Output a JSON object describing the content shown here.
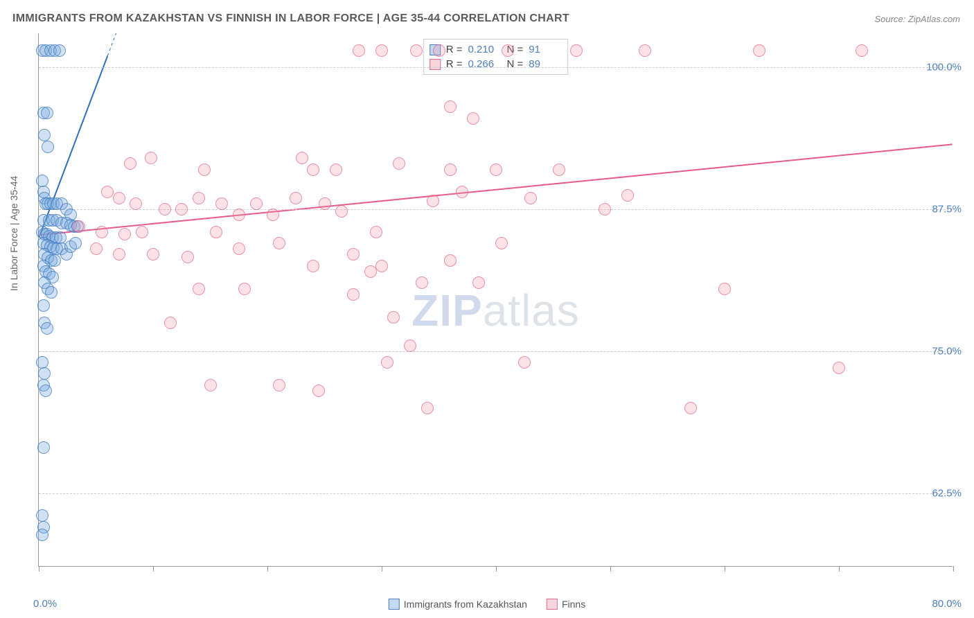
{
  "title": "IMMIGRANTS FROM KAZAKHSTAN VS FINNISH IN LABOR FORCE | AGE 35-44 CORRELATION CHART",
  "source": "Source: ZipAtlas.com",
  "y_axis_label": "In Labor Force | Age 35-44",
  "watermark": {
    "bold": "ZIP",
    "rest": "atlas"
  },
  "chart": {
    "type": "scatter",
    "xlim": [
      0,
      80
    ],
    "ylim": [
      56,
      103
    ],
    "x_ticks_major_labels": {
      "0": "0.0%",
      "80": "80.0%"
    },
    "x_ticks": [
      0,
      10,
      20,
      30,
      40,
      50,
      60,
      70,
      80
    ],
    "y_gridlines": [
      62.5,
      75.0,
      87.5,
      100.0
    ],
    "y_tick_labels": {
      "62.5": "62.5%",
      "75.0": "75.0%",
      "87.5": "87.5%",
      "100.0": "100.0%"
    },
    "grid_color": "#cccccc",
    "axis_color": "#999999",
    "label_color": "#4d7fc2",
    "background": "#ffffff",
    "marker_radius": 9,
    "series": [
      {
        "name": "Immigrants from Kazakhstan",
        "color_fill": "rgba(120,170,220,0.35)",
        "color_stroke": "#4d7fc2",
        "R": "0.210",
        "N": "91",
        "regression": {
          "x1": 0,
          "y1": 85,
          "x2": 6,
          "y2": 101,
          "dash_extend": true,
          "stroke": "#2f6fc0",
          "width": 2
        },
        "points": [
          [
            0.3,
            101.5
          ],
          [
            0.6,
            101.5
          ],
          [
            1.0,
            101.5
          ],
          [
            1.4,
            101.5
          ],
          [
            1.8,
            101.5
          ],
          [
            0.4,
            96
          ],
          [
            0.7,
            96
          ],
          [
            0.5,
            94
          ],
          [
            0.8,
            93
          ],
          [
            0.3,
            90
          ],
          [
            0.4,
            89
          ],
          [
            0.5,
            88.5
          ],
          [
            0.6,
            88
          ],
          [
            0.8,
            88
          ],
          [
            1.0,
            88
          ],
          [
            1.3,
            88
          ],
          [
            1.6,
            88
          ],
          [
            2.0,
            88
          ],
          [
            2.4,
            87.5
          ],
          [
            2.8,
            87
          ],
          [
            0.4,
            86.5
          ],
          [
            0.9,
            86.5
          ],
          [
            1.2,
            86.5
          ],
          [
            1.6,
            86.5
          ],
          [
            2.0,
            86.3
          ],
          [
            2.4,
            86.3
          ],
          [
            2.8,
            86.1
          ],
          [
            3.1,
            86.0
          ],
          [
            3.4,
            86.0
          ],
          [
            0.3,
            85.5
          ],
          [
            0.5,
            85.3
          ],
          [
            0.7,
            85.3
          ],
          [
            0.9,
            85.1
          ],
          [
            1.2,
            85.0
          ],
          [
            1.5,
            85.0
          ],
          [
            1.9,
            85.0
          ],
          [
            0.4,
            84.5
          ],
          [
            0.7,
            84.3
          ],
          [
            1.0,
            84.2
          ],
          [
            1.3,
            84.1
          ],
          [
            1.6,
            84.0
          ],
          [
            0.5,
            83.5
          ],
          [
            0.8,
            83.2
          ],
          [
            1.1,
            83.0
          ],
          [
            1.4,
            83.0
          ],
          [
            0.4,
            82.5
          ],
          [
            0.6,
            82.0
          ],
          [
            0.9,
            81.8
          ],
          [
            1.2,
            81.5
          ],
          [
            0.5,
            81.0
          ],
          [
            0.8,
            80.5
          ],
          [
            1.1,
            80.2
          ],
          [
            2.0,
            84.0
          ],
          [
            2.4,
            83.5
          ],
          [
            2.8,
            84.2
          ],
          [
            3.2,
            84.5
          ],
          [
            0.4,
            79.0
          ],
          [
            0.5,
            77.5
          ],
          [
            0.7,
            77.0
          ],
          [
            0.3,
            74.0
          ],
          [
            0.5,
            73.0
          ],
          [
            0.4,
            72.0
          ],
          [
            0.6,
            71.5
          ],
          [
            0.4,
            66.5
          ],
          [
            0.3,
            60.5
          ],
          [
            0.4,
            59.5
          ],
          [
            0.3,
            58.8
          ]
        ]
      },
      {
        "name": "Finns",
        "color_fill": "rgba(240,150,170,0.28)",
        "color_stroke": "#e06b8c",
        "R": "0.266",
        "N": "89",
        "regression": {
          "x1": 0,
          "y1": 85.2,
          "x2": 80,
          "y2": 93.2,
          "dash_extend": false,
          "stroke": "#e85a8a",
          "width": 2
        },
        "points": [
          [
            28,
            101.5
          ],
          [
            30,
            101.5
          ],
          [
            33,
            101.5
          ],
          [
            35,
            101.5
          ],
          [
            41,
            101.5
          ],
          [
            47,
            101.5
          ],
          [
            53,
            101.5
          ],
          [
            63,
            101.5
          ],
          [
            72,
            101.5
          ],
          [
            8,
            91.5
          ],
          [
            9.8,
            92
          ],
          [
            14.5,
            91
          ],
          [
            23,
            92
          ],
          [
            24,
            91
          ],
          [
            26,
            91
          ],
          [
            31.5,
            91.5
          ],
          [
            36,
            91
          ],
          [
            40,
            91
          ],
          [
            45.5,
            91
          ],
          [
            6,
            89
          ],
          [
            7,
            88.5
          ],
          [
            8.5,
            88
          ],
          [
            11,
            87.5
          ],
          [
            12.5,
            87.5
          ],
          [
            14,
            88.5
          ],
          [
            16,
            88
          ],
          [
            17.5,
            87
          ],
          [
            19,
            88
          ],
          [
            20.5,
            87
          ],
          [
            22.5,
            88.5
          ],
          [
            25,
            88
          ],
          [
            26.5,
            87.3
          ],
          [
            34.5,
            88.2
          ],
          [
            37,
            89
          ],
          [
            43,
            88.5
          ],
          [
            49.5,
            87.5
          ],
          [
            51.5,
            88.7
          ],
          [
            3.5,
            86
          ],
          [
            5.5,
            85.5
          ],
          [
            7.5,
            85.3
          ],
          [
            9,
            85.5
          ],
          [
            15.5,
            85.5
          ],
          [
            21,
            84.5
          ],
          [
            29.5,
            85.5
          ],
          [
            5,
            84
          ],
          [
            7,
            83.5
          ],
          [
            10,
            83.5
          ],
          [
            13,
            83.3
          ],
          [
            17.5,
            84
          ],
          [
            24,
            82.5
          ],
          [
            27.5,
            83.5
          ],
          [
            29,
            82
          ],
          [
            30,
            82.5
          ],
          [
            36,
            83
          ],
          [
            40.5,
            84.5
          ],
          [
            14,
            80.5
          ],
          [
            18,
            80.5
          ],
          [
            27.5,
            80
          ],
          [
            33.5,
            81
          ],
          [
            38.5,
            81
          ],
          [
            11.5,
            77.5
          ],
          [
            31,
            78
          ],
          [
            60,
            80.5
          ],
          [
            30.5,
            74
          ],
          [
            32.5,
            75.5
          ],
          [
            42.5,
            74
          ],
          [
            70,
            73.5
          ],
          [
            15,
            72
          ],
          [
            21,
            72
          ],
          [
            24.5,
            71.5
          ],
          [
            34,
            70
          ],
          [
            57,
            70
          ],
          [
            36,
            96.5
          ],
          [
            38,
            95.5
          ]
        ]
      }
    ]
  },
  "reg_legend_title": {
    "r_label": "R =",
    "n_label": "N ="
  },
  "bottom_legend": {
    "items": [
      {
        "key": "blue",
        "label": "Immigrants from Kazakhstan"
      },
      {
        "key": "pink",
        "label": "Finns"
      }
    ]
  }
}
